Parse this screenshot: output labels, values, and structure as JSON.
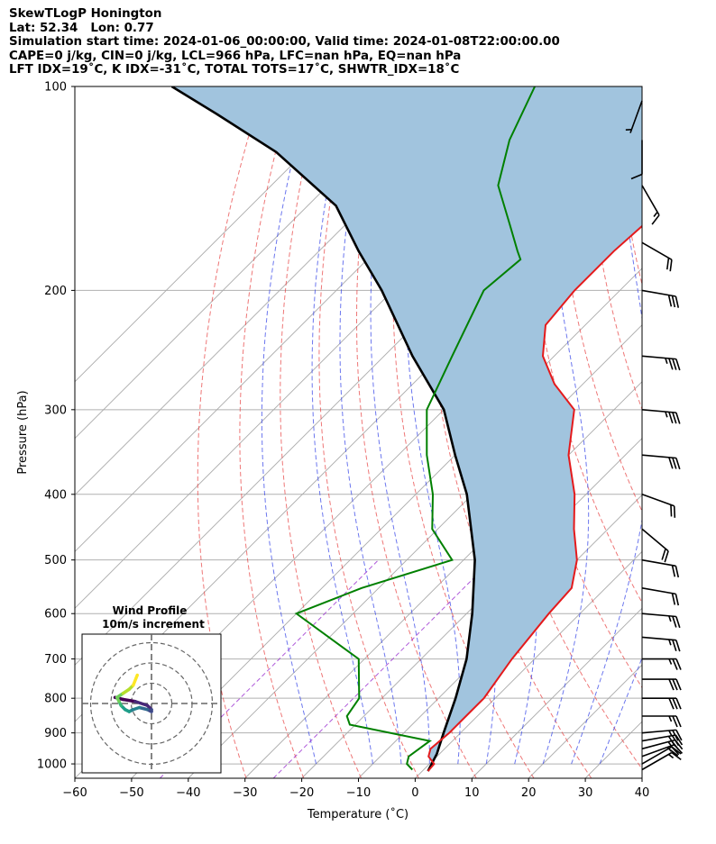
{
  "header": {
    "lines": [
      "SkewTLogP Honington",
      "Lat: 52.34   Lon: 0.77",
      "Simulation start time: 2024-01-06_00:00:00, Valid time: 2024-01-08T22:00:00.00",
      "CAPE=0 j/kg, CIN=0 j/kg, LCL=966 hPa, LFC=nan hPa, EQ=nan hPa",
      "LFT IDX=19˚C, K IDX=-31˚C, TOTAL TOTS=17˚C, SHWTR_IDX=18˚C"
    ]
  },
  "chart_data": {
    "type": "line",
    "title": "SkewTLogP Honington",
    "xlabel": "Temperature (˚C)",
    "ylabel": "Pressure (hPa)",
    "xlim": [
      -60,
      40
    ],
    "ylim": [
      1050,
      100
    ],
    "y_scale": "log",
    "x_ticks": [
      "−60",
      "−50",
      "−40",
      "−30",
      "−20",
      "−10",
      "0",
      "10",
      "20",
      "30",
      "40"
    ],
    "y_ticks": [
      "100",
      "200",
      "300",
      "400",
      "500",
      "600",
      "700",
      "800",
      "900",
      "1000"
    ],
    "grid": true,
    "series": [
      {
        "name": "Temperature",
        "color": "#e41a1c",
        "points": [
          [
            1,
            1025
          ],
          [
            0.8,
            1000
          ],
          [
            -1.5,
            975
          ],
          [
            -2.5,
            950
          ],
          [
            -2,
            900
          ],
          [
            -2,
            850
          ],
          [
            -2,
            800
          ],
          [
            -4,
            700
          ],
          [
            -5.5,
            600
          ],
          [
            -6,
            550
          ],
          [
            -10,
            500
          ],
          [
            -16,
            450
          ],
          [
            -22,
            400
          ],
          [
            -30,
            350
          ],
          [
            -37,
            300
          ],
          [
            -45,
            275
          ],
          [
            -52,
            250
          ],
          [
            -57,
            225
          ],
          [
            -58,
            200
          ],
          [
            -58,
            175
          ],
          [
            -57,
            150
          ],
          [
            -58,
            125
          ],
          [
            -61,
            110
          ],
          [
            -62,
            100
          ]
        ]
      },
      {
        "name": "Dewpoint",
        "color": "#008000",
        "points": [
          [
            -2,
            1020
          ],
          [
            -4,
            1000
          ],
          [
            -5,
            975
          ],
          [
            -4,
            925
          ],
          [
            -21,
            875
          ],
          [
            -23,
            850
          ],
          [
            -24,
            800
          ],
          [
            -31,
            700
          ],
          [
            -50,
            600
          ],
          [
            -43,
            550
          ],
          [
            -32,
            500
          ],
          [
            -41,
            450
          ],
          [
            -47,
            400
          ],
          [
            -55,
            350
          ],
          [
            -63,
            300
          ],
          [
            -68,
            250
          ],
          [
            -74,
            200
          ],
          [
            -73,
            180
          ],
          [
            -75,
            175
          ],
          [
            -81,
            160
          ],
          [
            -90,
            140
          ],
          [
            -96,
            120
          ],
          [
            -101,
            100
          ]
        ]
      },
      {
        "name": "Parcel",
        "color": "#000000",
        "points": [
          [
            1,
            1025
          ],
          [
            -0.5,
            966
          ],
          [
            -3,
            900
          ],
          [
            -7,
            800
          ],
          [
            -12,
            700
          ],
          [
            -19,
            600
          ],
          [
            -28,
            500
          ],
          [
            -41,
            400
          ],
          [
            -50,
            350
          ],
          [
            -60,
            300
          ],
          [
            -75,
            250
          ],
          [
            -92,
            200
          ],
          [
            -103,
            175
          ],
          [
            -115,
            150
          ],
          [
            -135,
            125
          ],
          [
            -152,
            110
          ],
          [
            -165,
            100
          ]
        ]
      }
    ],
    "cape_cin_shading": "#a1c4de",
    "reference_lines": {
      "isotherms": {
        "color": "#aaaaaa",
        "start": -130,
        "end": 40,
        "step": 10
      },
      "dry_adiabats": {
        "color": "#e84a4a",
        "theta_k": [
          240,
          250,
          260,
          270,
          280,
          290,
          300,
          310,
          320,
          330,
          340,
          350,
          360
        ]
      },
      "moist_adiabats": {
        "color": "#3b4ae8",
        "start_c": [
          -20,
          -10,
          -5,
          0,
          5,
          10,
          15,
          20,
          25,
          30
        ]
      },
      "mixing_ratio": {
        "color": "#9b30d0"
      }
    },
    "wind_barbs": {
      "color": "#000000",
      "levels": [
        {
          "p": 1020,
          "speed_kt": 15,
          "dir": 240
        },
        {
          "p": 1000,
          "speed_kt": 20,
          "dir": 240
        },
        {
          "p": 975,
          "speed_kt": 25,
          "dir": 250
        },
        {
          "p": 950,
          "speed_kt": 25,
          "dir": 255
        },
        {
          "p": 925,
          "speed_kt": 30,
          "dir": 260
        },
        {
          "p": 900,
          "speed_kt": 25,
          "dir": 265
        },
        {
          "p": 850,
          "speed_kt": 25,
          "dir": 270
        },
        {
          "p": 800,
          "speed_kt": 30,
          "dir": 270
        },
        {
          "p": 750,
          "speed_kt": 30,
          "dir": 270
        },
        {
          "p": 700,
          "speed_kt": 25,
          "dir": 270
        },
        {
          "p": 650,
          "speed_kt": 25,
          "dir": 275
        },
        {
          "p": 600,
          "speed_kt": 25,
          "dir": 275
        },
        {
          "p": 550,
          "speed_kt": 20,
          "dir": 280
        },
        {
          "p": 500,
          "speed_kt": 20,
          "dir": 280
        },
        {
          "p": 450,
          "speed_kt": 20,
          "dir": 310
        },
        {
          "p": 400,
          "speed_kt": 20,
          "dir": 290
        },
        {
          "p": 350,
          "speed_kt": 30,
          "dir": 275
        },
        {
          "p": 300,
          "speed_kt": 35,
          "dir": 275
        },
        {
          "p": 250,
          "speed_kt": 35,
          "dir": 275
        },
        {
          "p": 200,
          "speed_kt": 30,
          "dir": 280
        },
        {
          "p": 170,
          "speed_kt": 20,
          "dir": 300
        },
        {
          "p": 140,
          "speed_kt": 15,
          "dir": 330
        },
        {
          "p": 120,
          "speed_kt": 10,
          "dir": 0
        },
        {
          "p": 105,
          "speed_kt": 5,
          "dir": 20
        }
      ]
    },
    "wind_profile_inset": {
      "title": "Wind Profile",
      "subtitle": "10m/s increment",
      "rings_ms": [
        10,
        20,
        30
      ],
      "hodograph_uv_ms": [
        [
          -18,
          3
        ],
        [
          -14,
          2
        ],
        [
          -8,
          1
        ],
        [
          -2,
          -1
        ],
        [
          0,
          -3
        ],
        [
          0,
          -4
        ],
        [
          -2,
          -3
        ],
        [
          -6,
          -2
        ],
        [
          -9,
          -3
        ],
        [
          -11,
          -4
        ],
        [
          -13,
          -3
        ],
        [
          -15,
          -1
        ],
        [
          -16,
          1
        ],
        [
          -17,
          3
        ],
        [
          -14,
          5
        ],
        [
          -11,
          7
        ],
        [
          -9,
          9
        ],
        [
          -7,
          14
        ]
      ],
      "colormap": "viridis"
    }
  }
}
